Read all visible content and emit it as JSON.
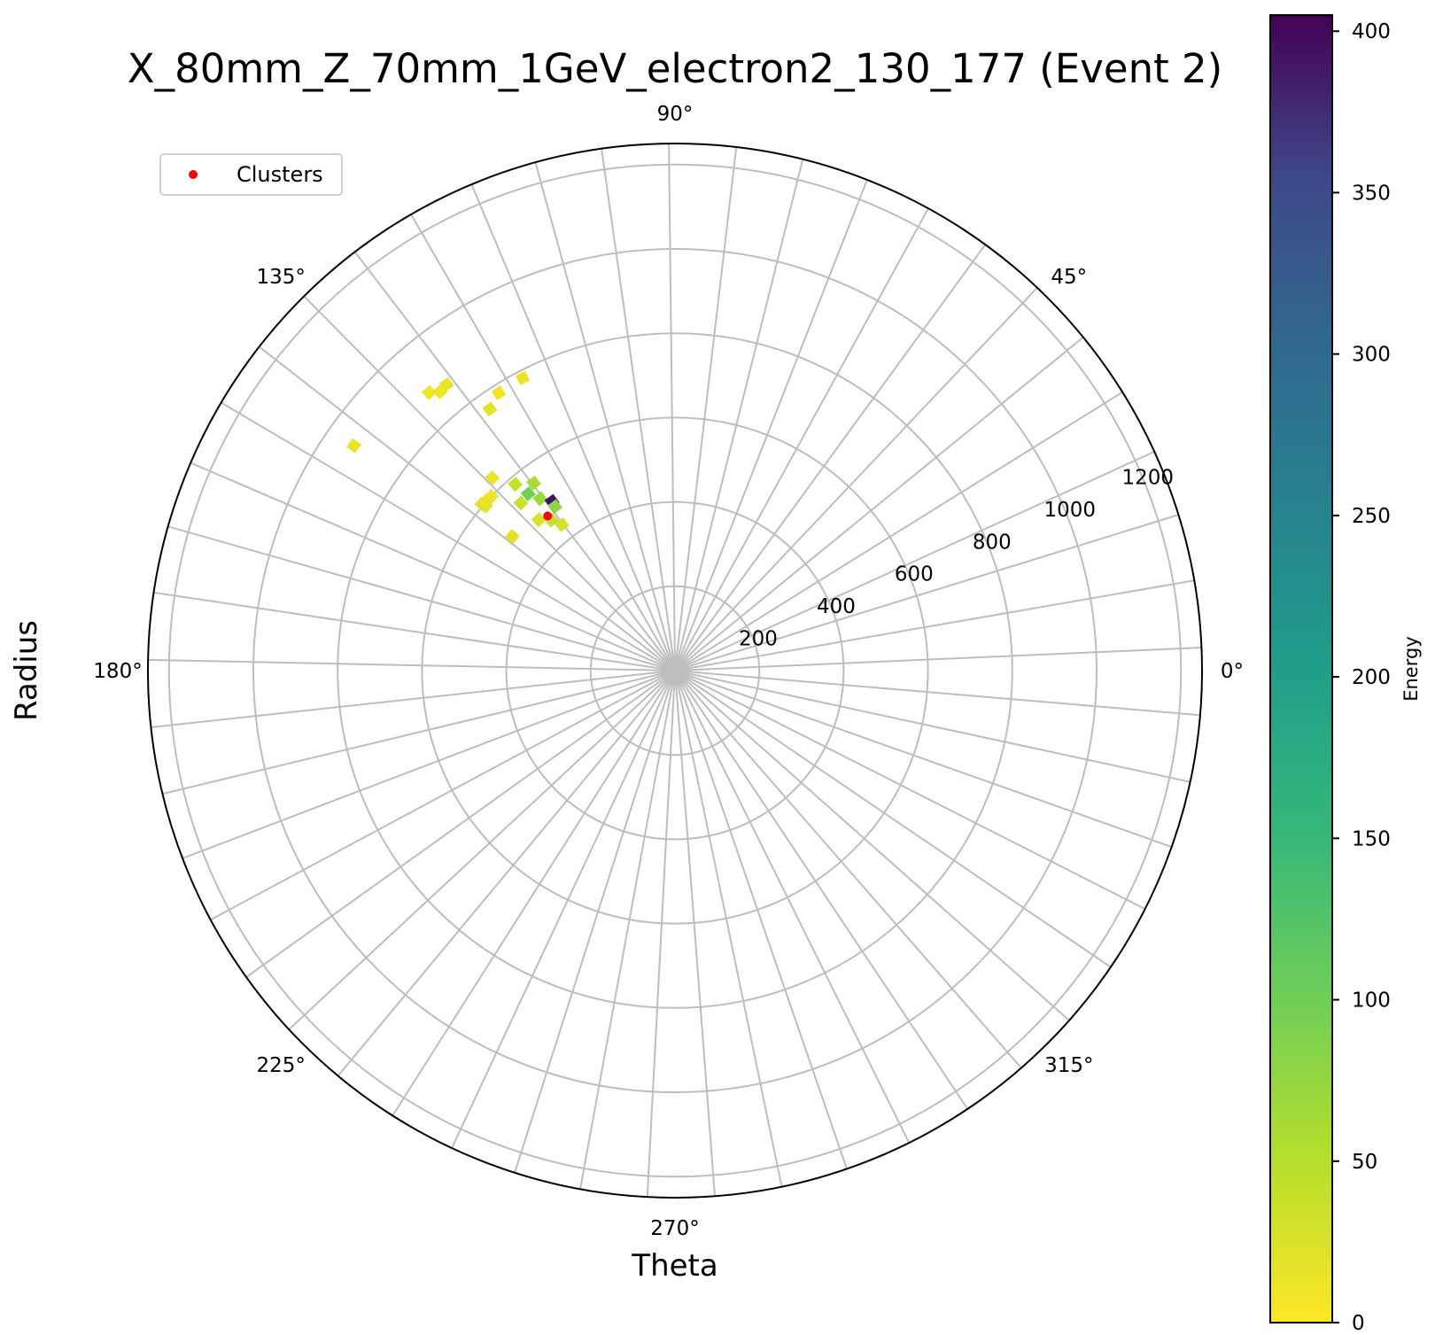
{
  "chart_data": {
    "type": "scatter",
    "projection": "polar",
    "title": "X_80mm_Z_70mm_1GeV_electron2_130_177 (Event 2)",
    "xlabel": "Theta",
    "ylabel": "Radius",
    "theta_unit": "degrees",
    "theta_tick_labels": [
      "0°",
      "45°",
      "90°",
      "135°",
      "180°",
      "225°",
      "270°",
      "315°"
    ],
    "r_ticks": [
      200,
      400,
      600,
      800,
      1000,
      1200
    ],
    "r_tick_labels": [
      "200",
      "400",
      "600",
      "800",
      "1000",
      "1200"
    ],
    "r_lim": [
      0,
      1250
    ],
    "grid": true,
    "angular_gridlines": 49,
    "colormap": "viridis_r",
    "colorbar": {
      "label": "Energy",
      "range": [
        0,
        405
      ],
      "ticks": [
        0,
        50,
        100,
        150,
        200,
        250,
        300,
        350,
        400
      ],
      "tick_labels": [
        "0",
        "50",
        "100",
        "150",
        "200",
        "250",
        "300",
        "350",
        "400"
      ]
    },
    "legend": {
      "placement": "top-left",
      "entries": [
        "Clusters"
      ]
    },
    "hits": [
      {
        "theta": 131.5,
        "r": 880,
        "energy": 10
      },
      {
        "theta": 130.1,
        "r": 865,
        "energy": 10
      },
      {
        "theta": 128.6,
        "r": 868,
        "energy": 15
      },
      {
        "theta": 125.3,
        "r": 760,
        "energy": 20
      },
      {
        "theta": 122.4,
        "r": 780,
        "energy": 10
      },
      {
        "theta": 117.5,
        "r": 782,
        "energy": 15
      },
      {
        "theta": 139.2,
        "r": 605,
        "energy": 20
      },
      {
        "theta": 139.0,
        "r": 595,
        "energy": 20
      },
      {
        "theta": 138.0,
        "r": 602,
        "energy": 15
      },
      {
        "theta": 136.5,
        "r": 600,
        "energy": 10
      },
      {
        "theta": 133.5,
        "r": 630,
        "energy": 15
      },
      {
        "theta": 130.6,
        "r": 582,
        "energy": 40
      },
      {
        "theta": 129.7,
        "r": 545,
        "energy": 100
      },
      {
        "theta": 132.6,
        "r": 540,
        "energy": 35
      },
      {
        "theta": 128.1,
        "r": 518,
        "energy": 70
      },
      {
        "theta": 127.0,
        "r": 557,
        "energy": 60
      },
      {
        "theta": 126.0,
        "r": 496,
        "energy": 395
      },
      {
        "theta": 126.2,
        "r": 482,
        "energy": 80
      },
      {
        "theta": 127.8,
        "r": 438,
        "energy": 30
      },
      {
        "theta": 129.4,
        "r": 462,
        "energy": 40
      },
      {
        "theta": 132.1,
        "r": 482,
        "energy": 25
      },
      {
        "theta": 140.5,
        "r": 500,
        "energy": 20
      },
      {
        "theta": 145.0,
        "r": 930,
        "energy": 15
      }
    ],
    "clusters": [
      {
        "theta": 129.5,
        "r": 475
      }
    ]
  },
  "legend": {
    "label": "Clusters"
  },
  "colors": {
    "cluster_marker": "#ff0000",
    "grid": "#bdbdbd",
    "frame": "#000000"
  }
}
